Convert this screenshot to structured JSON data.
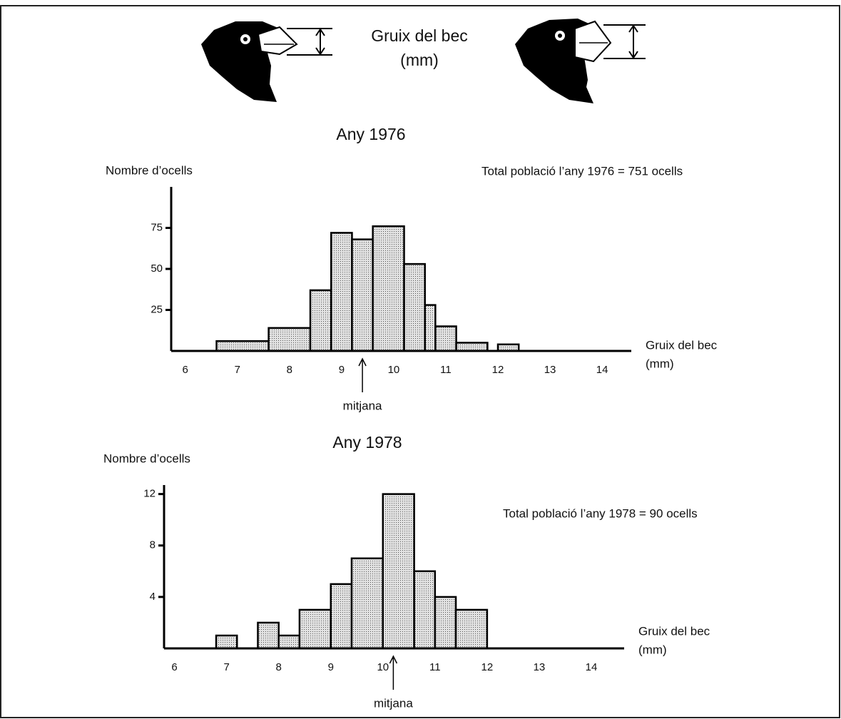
{
  "header": {
    "title": [
      "Gruix del bec",
      "(mm)"
    ]
  },
  "chart_data": [
    {
      "type": "histogram",
      "title": "Any 1976",
      "ylabel": "Nombre d’ocells",
      "xlabel": [
        "Gruix del bec",
        "(mm)"
      ],
      "annotation": "Total població l’any 1976 = 751 ocells",
      "bins": [
        6.6,
        7.6,
        8.4,
        8.8,
        9.2,
        9.6,
        10.2,
        10.6,
        10.8,
        11.2,
        11.8,
        12.0,
        12.4
      ],
      "values": [
        6,
        14,
        37,
        72,
        68,
        76,
        53,
        28,
        15,
        5,
        0,
        4
      ],
      "mean": 9.4,
      "mean_label": "mitjana",
      "xlim": [
        5.73,
        14.56
      ],
      "xticks": [
        6,
        7,
        8,
        9,
        10,
        11,
        12,
        13,
        14
      ],
      "ylim": [
        0,
        100
      ],
      "yticks": [
        25,
        50,
        75
      ]
    },
    {
      "type": "histogram",
      "title": "Any 1978",
      "ylabel": "Nombre d’ocells",
      "xlabel": [
        "Gruix del bec",
        "(mm)"
      ],
      "annotation": "Total població l’any 1978 = 90 ocells",
      "bins": [
        6.8,
        7.2,
        7.6,
        8.0,
        8.4,
        9.0,
        9.4,
        10.0,
        10.6,
        11.0,
        11.4,
        12.0
      ],
      "values": [
        1,
        0,
        2,
        1,
        3,
        5,
        7,
        12,
        6,
        4,
        3
      ],
      "mean": 10.2,
      "mean_label": "mitjana",
      "xlim": [
        5.8,
        14.63
      ],
      "xticks": [
        6,
        7,
        8,
        9,
        10,
        11,
        12,
        13,
        14
      ],
      "ylim": [
        0,
        12.7
      ],
      "yticks": [
        4,
        8,
        12
      ]
    }
  ]
}
